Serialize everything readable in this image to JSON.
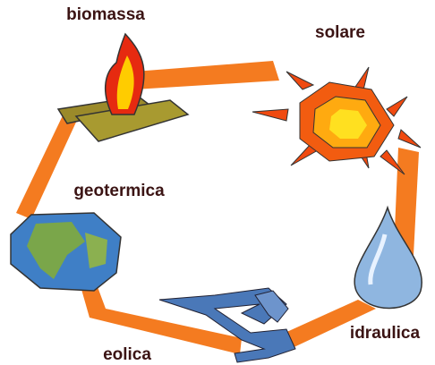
{
  "nodes": [
    {
      "label": "biomassa"
    },
    {
      "label": "solare"
    },
    {
      "label": "geotermica"
    },
    {
      "label": "idraulica"
    },
    {
      "label": "eolica"
    }
  ]
}
